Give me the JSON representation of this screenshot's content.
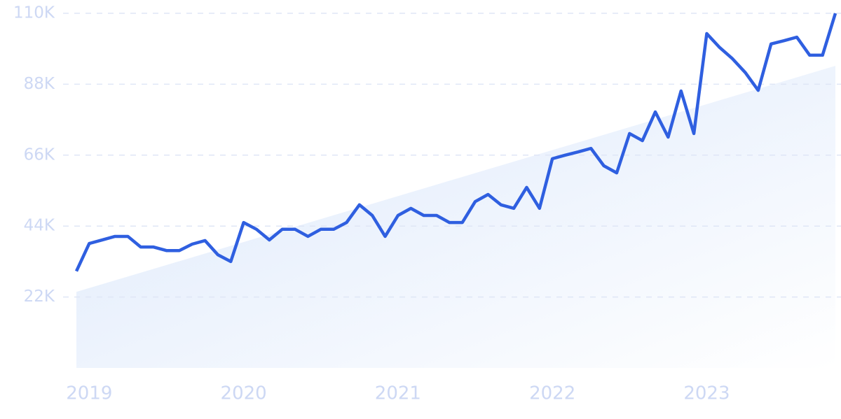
{
  "chart_data": {
    "type": "line",
    "categories": [
      null,
      "2019",
      null,
      null,
      null,
      null,
      null,
      null,
      null,
      null,
      null,
      null,
      null,
      "2020",
      null,
      null,
      null,
      null,
      null,
      null,
      null,
      null,
      null,
      null,
      null,
      "2021",
      null,
      null,
      null,
      null,
      null,
      null,
      null,
      null,
      null,
      null,
      null,
      "2022",
      null,
      null,
      null,
      null,
      null,
      null,
      null,
      null,
      null,
      null,
      null,
      "2023",
      null,
      null,
      null,
      null,
      null,
      null,
      null,
      null,
      null,
      null
    ],
    "series": [
      {
        "color": "#2f5fe0",
        "values": [
          30000,
          38600,
          39700,
          40800,
          40800,
          37500,
          37500,
          36400,
          36400,
          38400,
          39500,
          35100,
          33000,
          45100,
          43000,
          39700,
          43000,
          43000,
          40800,
          43000,
          43000,
          45100,
          50600,
          47300,
          40800,
          47300,
          49500,
          47300,
          47300,
          45100,
          45100,
          51600,
          53800,
          50600,
          49500,
          56000,
          49500,
          64900,
          66000,
          67000,
          68100,
          62700,
          60500,
          72700,
          70500,
          79400,
          71600,
          85900,
          72700,
          103700,
          99400,
          95900,
          91600,
          86100,
          100500,
          101500,
          102600,
          97000,
          97000,
          110000
        ]
      }
    ],
    "trend": {
      "start": 23600,
      "end": 93700,
      "color": "#dce8fb"
    },
    "ylim": [
      0,
      110000
    ],
    "yticks": [
      {
        "value": 22000,
        "label": "22K"
      },
      {
        "value": 44000,
        "label": "44K"
      },
      {
        "value": 66000,
        "label": "66K"
      },
      {
        "value": 88000,
        "label": "88K"
      },
      {
        "value": 110000,
        "label": "110K"
      }
    ],
    "grid": true
  }
}
